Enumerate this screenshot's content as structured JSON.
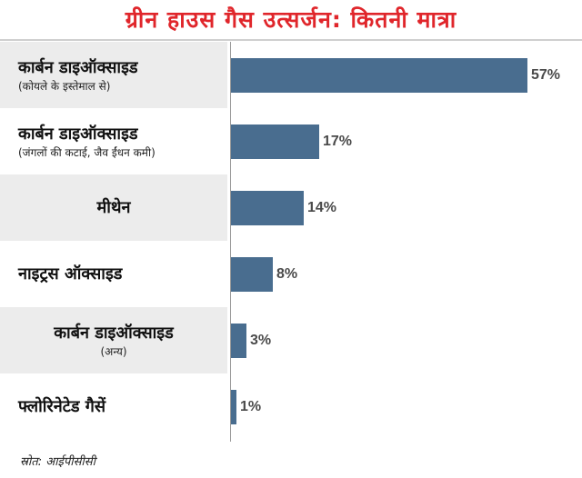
{
  "title": "ग्रीन हाउस गैस उत्सर्जन: कितनी मात्रा",
  "source": "स्रोत: आईपीसीसी",
  "colors": {
    "title": "#e0262b",
    "bar": "#496d8f",
    "row_shade": "#ececec"
  },
  "chart_data": {
    "type": "bar",
    "orientation": "horizontal",
    "title": "ग्रीन हाउस गैस उत्सर्जन: कितनी मात्रा",
    "categories": [
      {
        "label": "कार्बन डाइऑक्साइड",
        "sublabel": "(कोयले के इस्तेमाल से)"
      },
      {
        "label": "कार्बन डाइऑक्साइड",
        "sublabel": "(जंगलों की कटाई, जैव ईंधन कमी)"
      },
      {
        "label": "मीथेन",
        "sublabel": ""
      },
      {
        "label": "नाइट्रस ऑक्साइड",
        "sublabel": ""
      },
      {
        "label": "कार्बन डाइऑक्साइड",
        "sublabel": "(अन्य)"
      },
      {
        "label": "फ्लोरिनेटेड गैसें",
        "sublabel": ""
      }
    ],
    "values": [
      57,
      17,
      14,
      8,
      3,
      1
    ],
    "value_labels": [
      "57%",
      "17%",
      "14%",
      "8%",
      "3%",
      "1%"
    ],
    "xlim": [
      0,
      57
    ],
    "grid": false,
    "legend": "none"
  }
}
